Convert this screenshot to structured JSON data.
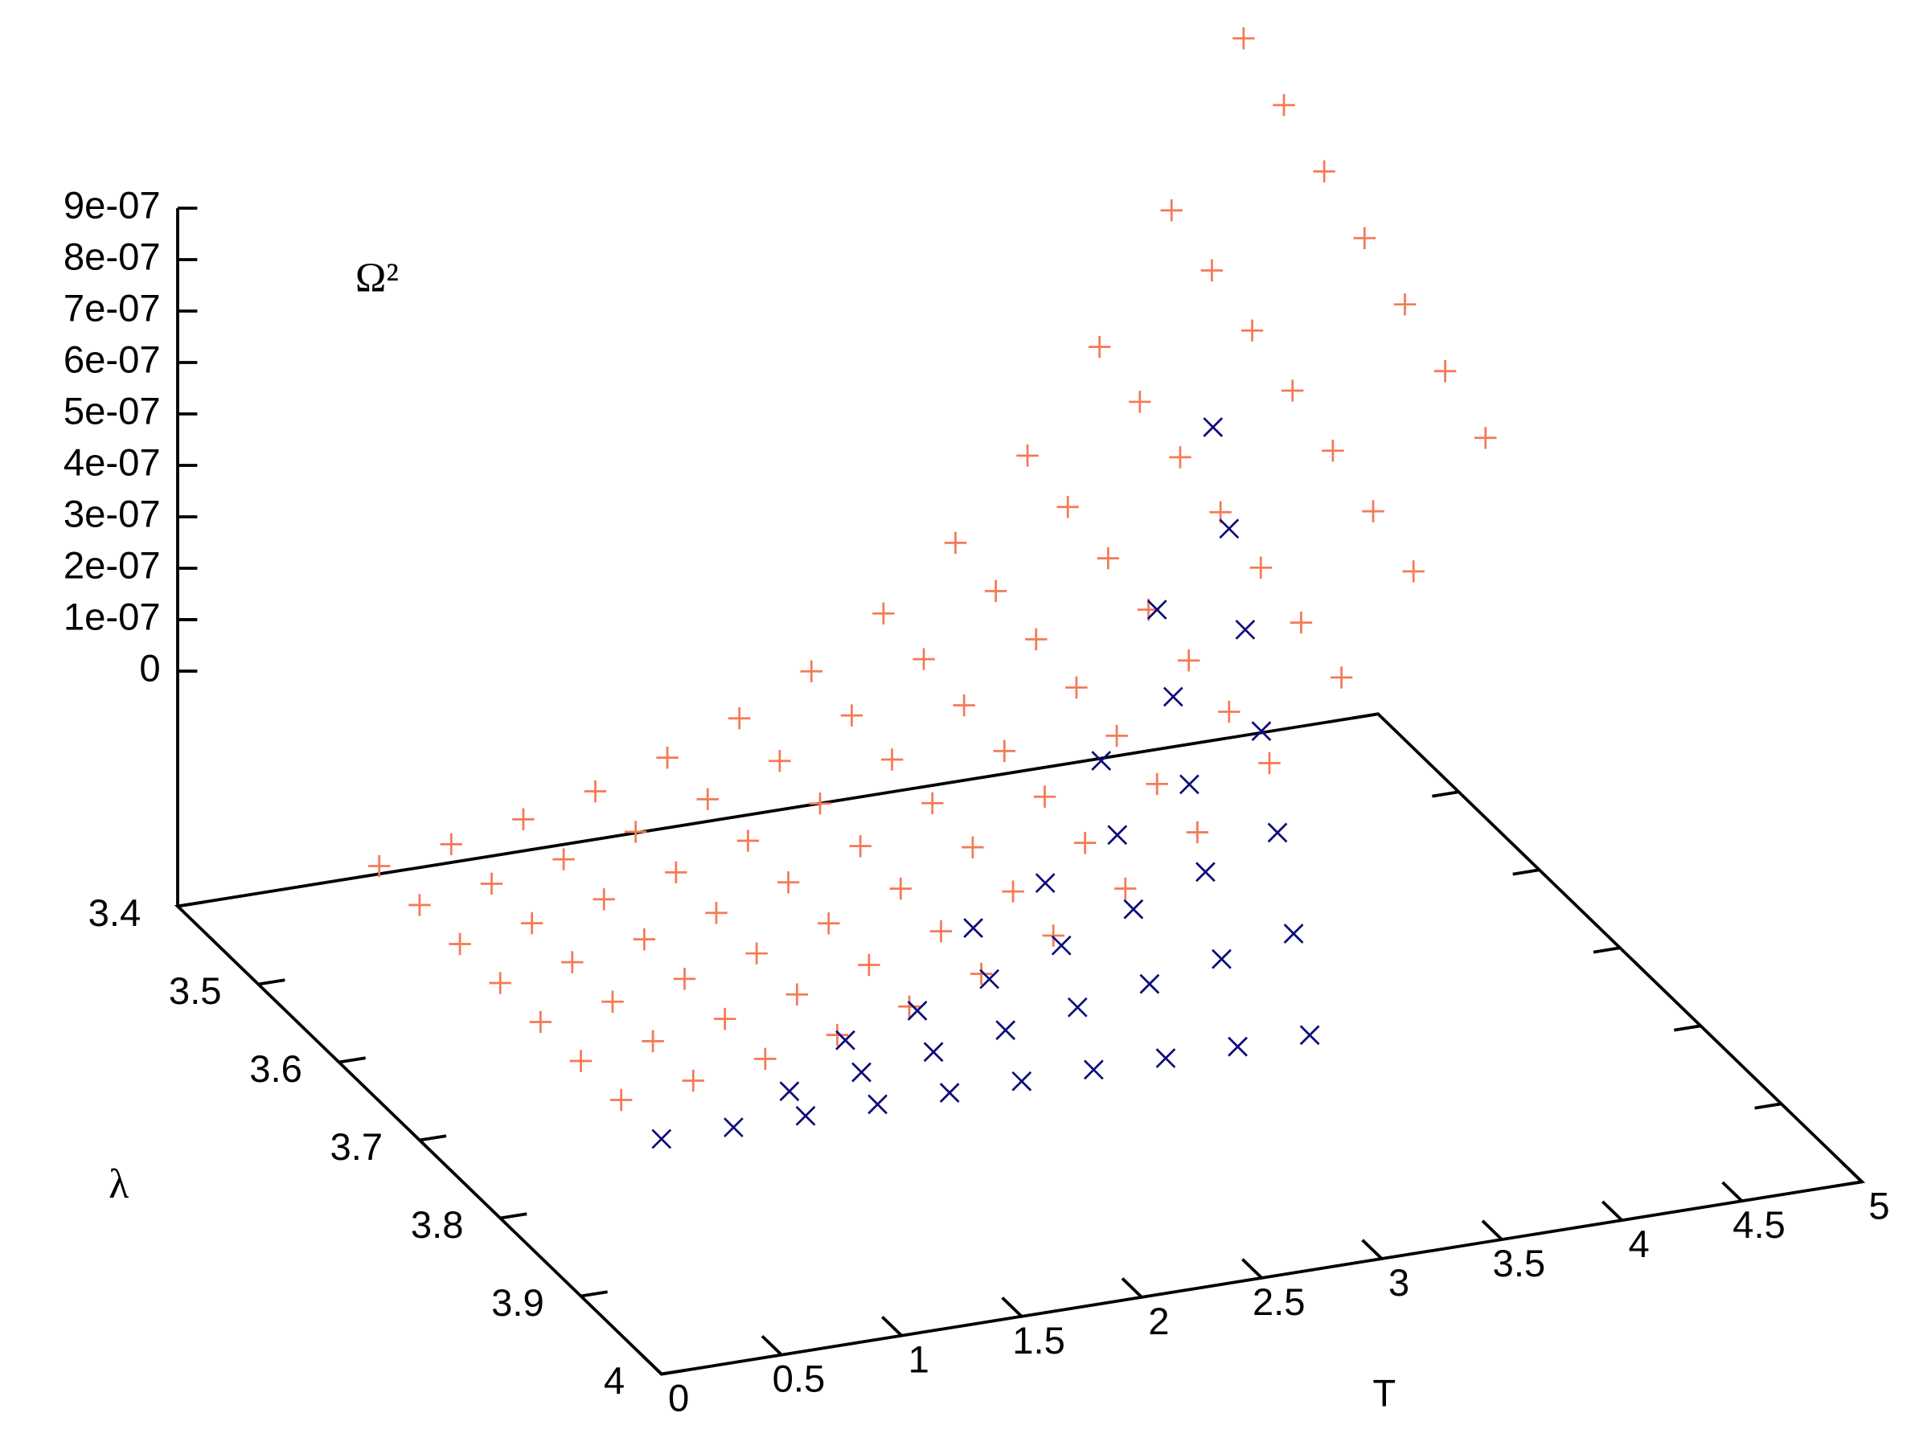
{
  "chart_data": {
    "type": "scatter3d",
    "xlabel": "T",
    "ylabel": "λ",
    "zlabel": "Ω²",
    "xlim": [
      0,
      5
    ],
    "ylim": [
      3.4,
      4
    ],
    "zlim": [
      0,
      9e-07
    ],
    "xticks": [
      0,
      0.5,
      1,
      1.5,
      2,
      2.5,
      3,
      3.5,
      4,
      4.5,
      5
    ],
    "yticks": [
      3.4,
      3.5,
      3.6,
      3.7,
      3.8,
      3.9,
      4
    ],
    "zticks": [
      0,
      {
        "value": 1e-07,
        "label": "1e-07"
      },
      {
        "value": 2e-07,
        "label": "2e-07"
      },
      {
        "value": 3e-07,
        "label": "3e-07"
      },
      {
        "value": 4e-07,
        "label": "4e-07"
      },
      {
        "value": 5e-07,
        "label": "5e-07"
      },
      {
        "value": 6e-07,
        "label": "6e-07"
      },
      {
        "value": 7e-07,
        "label": "7e-07"
      },
      {
        "value": 8e-07,
        "label": "8e-07"
      },
      {
        "value": 9e-07,
        "label": "9e-07"
      }
    ],
    "series": [
      {
        "color": "#f47a55",
        "marker": "plus",
        "x": [
          0,
          0.3,
          0.6,
          0.9,
          1.2,
          1.5,
          1.8,
          2.1,
          2.4,
          2.7,
          3,
          3.3,
          3.6
        ],
        "y": [
          3.65,
          3.7,
          3.75,
          3.8,
          3.85,
          3.9,
          3.95
        ],
        "values": [
          [
            0,
            2e-08,
            4.6e-08,
            7.8e-08,
            1.21e-07,
            1.75e-07,
            2.44e-07,
            3.34e-07,
            4.49e-07,
            5.96e-07,
            7.85e-07,
            1.028e-06,
            1.34e-06
          ],
          [
            0,
            1.9e-08,
            4.4e-08,
            7.5e-08,
            1.16e-07,
            1.68e-07,
            2.34e-07,
            3.21e-07,
            4.31e-07,
            5.72e-07,
            7.54e-07,
            9.87e-07,
            1.286e-06
          ],
          [
            0,
            1.8e-08,
            4.2e-08,
            7.2e-08,
            1.11e-07,
            1.61e-07,
            2.24e-07,
            3.07e-07,
            4.13e-07,
            5.48e-07,
            7.22e-07,
            9.46e-07,
            1.233e-06
          ],
          [
            0,
            1.8e-08,
            4e-08,
            6.9e-08,
            1.06e-07,
            1.54e-07,
            2.15e-07,
            2.94e-07,
            3.95e-07,
            5.24e-07,
            6.91e-07,
            9.05e-07,
            1.179e-06
          ],
          [
            0,
            1.7e-08,
            3.9e-08,
            6.6e-08,
            1.02e-07,
            1.47e-07,
            2.05e-07,
            2.81e-07,
            3.77e-07,
            5.01e-07,
            6.59e-07,
            8.64e-07,
            1.126e-06
          ],
          [
            0,
            1.6e-08,
            3.7e-08,
            6.2e-08,
            9.7e-08,
            1.4e-07,
            1.95e-07,
            2.67e-07,
            3.59e-07,
            4.77e-07,
            6.28e-07,
            8.22e-07,
            1.072e-06
          ],
          [
            0,
            1.5e-08,
            3.5e-08,
            5.9e-08,
            9.2e-08,
            1.33e-07,
            1.85e-07,
            2.54e-07,
            3.41e-07,
            4.53e-07,
            5.97e-07,
            7.81e-07,
            1.018e-06
          ]
        ]
      },
      {
        "color": "#0d0d7a",
        "marker": "cross",
        "x": [
          0,
          0.3,
          0.6,
          0.9,
          1.2,
          1.5,
          1.8,
          2.1,
          2.4,
          2.7
        ],
        "y": [
          3.88,
          3.9,
          3.92,
          3.94,
          3.96,
          3.98,
          4
        ],
        "values": [
          [
            null,
            null,
            null,
            null,
            null,
            null,
            null,
            null,
            null,
            1e-06
          ],
          [
            null,
            null,
            null,
            null,
            null,
            null,
            null,
            null,
            6.98e-07,
            8.33e-07
          ],
          [
            null,
            null,
            null,
            null,
            null,
            null,
            null,
            4.57e-07,
            5.59e-07,
            6.67e-07
          ],
          [
            null,
            null,
            null,
            null,
            null,
            2.07e-07,
            2.72e-07,
            3.43e-07,
            4.19e-07,
            5e-07
          ],
          [
            null,
            null,
            null,
            6.4e-08,
            9.9e-08,
            1.38e-07,
            1.81e-07,
            2.29e-07,
            2.79e-07,
            3.33e-07
          ],
          [
            null,
            null,
            1.75e-08,
            3.2e-08,
            4.9e-08,
            6.9e-08,
            9.1e-08,
            1.14e-07,
            1.4e-07,
            1.67e-07
          ],
          [
            0,
            0,
            0,
            0,
            0,
            0,
            0,
            0,
            0,
            0
          ]
        ]
      }
    ]
  }
}
